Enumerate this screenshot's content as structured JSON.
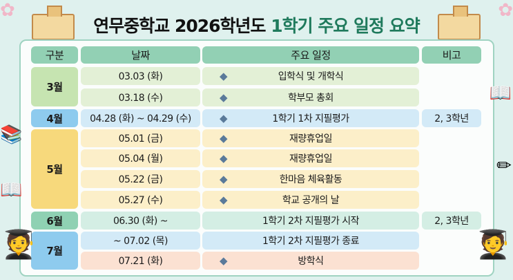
{
  "title": {
    "main": "연무중학교 2026학년도",
    "accent": "1학기 주요 일정 요약"
  },
  "headers": [
    "구분",
    "날짜",
    "주요 일정",
    "비고"
  ],
  "months": [
    {
      "label": "3월",
      "color": "#c6e4b1"
    },
    {
      "label": "4월",
      "color": "#8ecbee"
    },
    {
      "label": "5월",
      "color": "#f7d97c"
    },
    {
      "label": "6월",
      "color": "#8fd1b3"
    },
    {
      "label": "7월",
      "color": "#8ecbee"
    }
  ],
  "rows": [
    {
      "date": "03.03 (화)",
      "event": "입학식 및 개학식",
      "note": "",
      "color": "#e3f0d6",
      "icon": "school-gate-icon"
    },
    {
      "date": "03.18 (수)",
      "event": "학부모 총회",
      "note": "",
      "color": "#e3f0d6",
      "icon": "parents-icon"
    },
    {
      "date": "04.28 (화) ~ 04.29 (수)",
      "event": "1학기 1차 지필평가",
      "note": "2, 3학년",
      "color": "#d3eaf7",
      "icon": "exam-paper-icon"
    },
    {
      "date": "05.01 (금)",
      "event": "재량휴업일",
      "note": "",
      "color": "#fcefc9",
      "icon": "hammock-icon"
    },
    {
      "date": "05.04 (월)",
      "event": "재량휴업일",
      "note": "",
      "color": "#fcefc9",
      "icon": "beach-icon"
    },
    {
      "date": "05.22 (금)",
      "event": "한마음 체육활동",
      "note": "",
      "color": "#fcefc9",
      "icon": "trophy-icon"
    },
    {
      "date": "05.27 (수)",
      "event": "학교 공개의 날",
      "note": "",
      "color": "#fcefc9",
      "icon": "magnifier-classroom-icon"
    },
    {
      "date": "06.30 (화) ~",
      "event": "1학기 2차 지필평가 시작",
      "note": "2, 3학년",
      "color": "#d4eee4",
      "icon": ""
    },
    {
      "date": "~ 07.02 (목)",
      "event": "1학기 2차 지필평가 종료",
      "note": "",
      "color": "#d3eaf7",
      "icon": ""
    },
    {
      "date": "07.21 (화)",
      "event": "방학식",
      "note": "",
      "color": "#fbe1d2",
      "icon": "sun-umbrella-icon"
    }
  ]
}
